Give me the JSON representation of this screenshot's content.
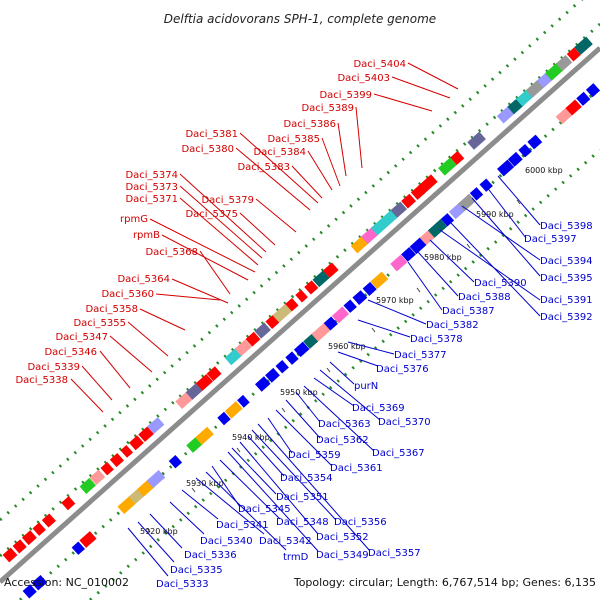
{
  "title": "Delftia acidovorans SPH-1, complete genome",
  "accession": "Accession: NC_010002",
  "summary": "Topology: circular; Length: 6,767,514 bp; Genes: 6,135",
  "colors": {
    "forward_label": "#d40000",
    "reverse_label": "#0000cc",
    "forward_gene": "#ff0000",
    "reverse_gene": "#0000ee",
    "backbone": "#8c8c8c",
    "dots": "#2a8a2a"
  },
  "scale_ticks": [
    "5920 kbp",
    "5930 kbp",
    "5940 kbp",
    "5950 kbp",
    "5960 kbp",
    "5970 kbp",
    "5980 kbp",
    "5990 kbp",
    "6000 kbp"
  ],
  "forward_labels": [
    "Daci_5338",
    "Daci_5339",
    "Daci_5346",
    "Daci_5347",
    "Daci_5355",
    "Daci_5358",
    "Daci_5360",
    "Daci_5364",
    "Daci_5368",
    "rpmB",
    "rpmG",
    "Daci_5371",
    "Daci_5373",
    "Daci_5374",
    "Daci_5375",
    "Daci_5379",
    "Daci_5380",
    "Daci_5381",
    "Daci_5383",
    "Daci_5384",
    "Daci_5385",
    "Daci_5386",
    "Daci_5389",
    "Daci_5399",
    "Daci_5403",
    "Daci_5404"
  ],
  "reverse_labels": [
    "Daci_5333",
    "Daci_5335",
    "Daci_5336",
    "Daci_5340",
    "Daci_5341",
    "Daci_5342",
    "trmD",
    "Daci_5345",
    "Daci_5348",
    "Daci_5349",
    "Daci_5351",
    "Daci_5352",
    "Daci_5354",
    "Daci_5356",
    "Daci_5357",
    "Daci_5359",
    "Daci_5361",
    "Daci_5362",
    "Daci_5363",
    "Daci_5367",
    "Daci_5369",
    "Daci_5370",
    "purN",
    "Daci_5376",
    "Daci_5377",
    "Daci_5378",
    "Daci_5382",
    "Daci_5387",
    "Daci_5388",
    "Daci_5390",
    "Daci_5391",
    "Daci_5392",
    "Daci_5394",
    "Daci_5395",
    "Daci_5397",
    "Daci_5398"
  ]
}
